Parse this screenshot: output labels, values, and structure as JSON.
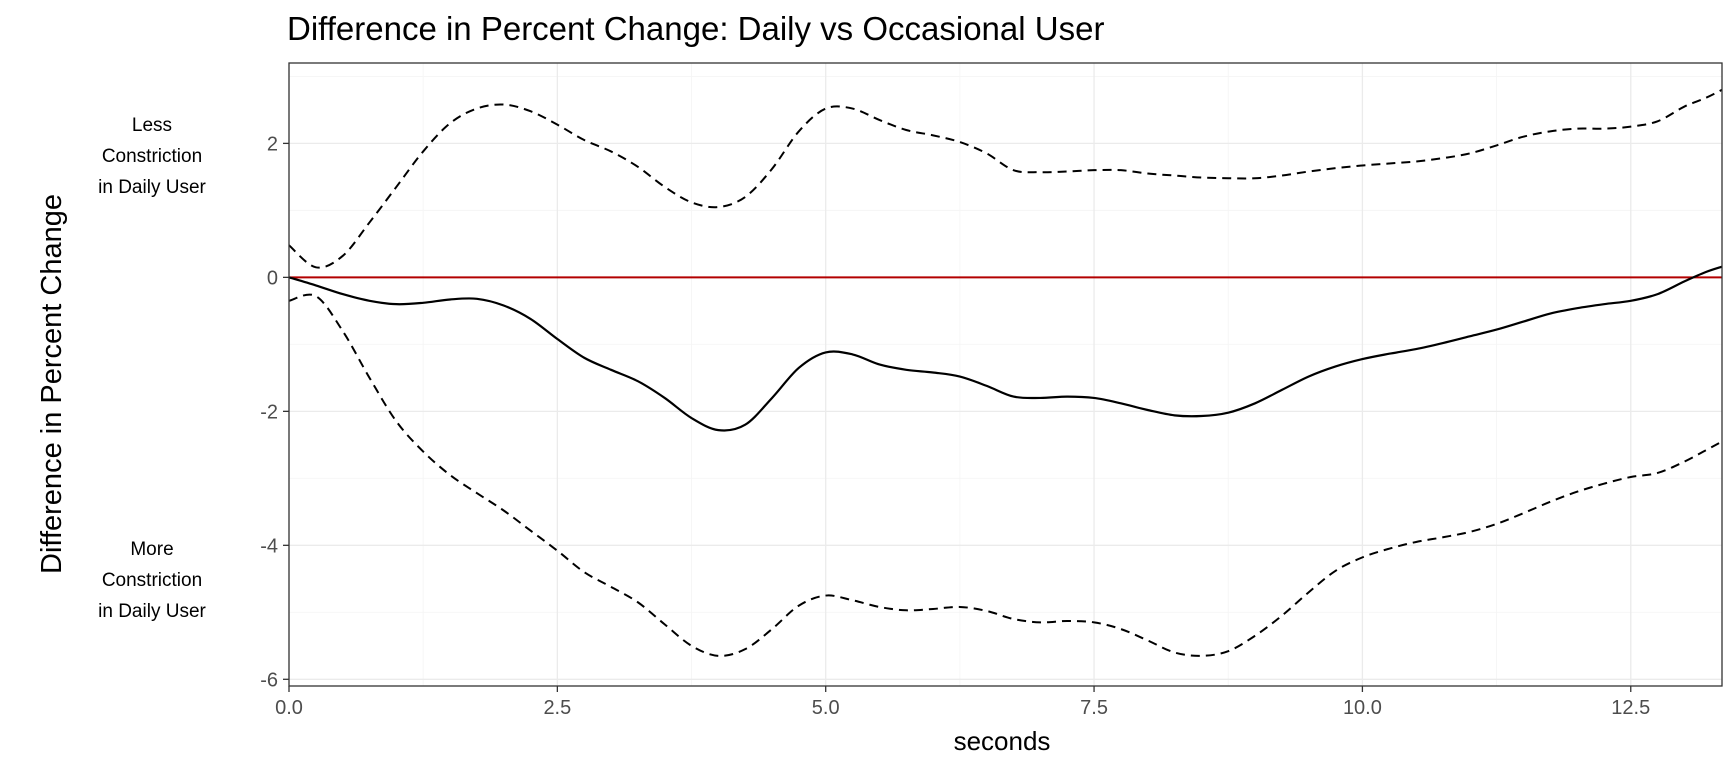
{
  "chart_data": {
    "type": "line",
    "title": "Difference in Percent Change: Daily vs Occasional User",
    "xlabel": "seconds",
    "ylabel": "Difference in Percent Change",
    "xlim": [
      0,
      13.35
    ],
    "ylim": [
      -6.1,
      3.2
    ],
    "x_ticks": [
      0.0,
      2.5,
      5.0,
      7.5,
      10.0,
      12.5
    ],
    "x_tick_labels": [
      "0.0",
      "2.5",
      "5.0",
      "7.5",
      "10.0",
      "12.5"
    ],
    "y_ticks": [
      -6,
      -4,
      -2,
      0,
      2
    ],
    "y_tick_labels": [
      "-6",
      "-4",
      "-2",
      "0",
      "2"
    ],
    "grid": true,
    "reference_line": {
      "y": 0,
      "color": "#b30000"
    },
    "annotations": {
      "upper": [
        "Less",
        "Constriction",
        "in Daily User"
      ],
      "lower": [
        "More",
        "Constriction",
        "in Daily User"
      ]
    },
    "series": [
      {
        "style": "solid",
        "x": [
          0.0,
          0.25,
          0.5,
          0.75,
          1.0,
          1.25,
          1.5,
          1.75,
          2.0,
          2.25,
          2.5,
          2.75,
          3.0,
          3.25,
          3.5,
          3.75,
          4.0,
          4.25,
          4.5,
          4.75,
          5.0,
          5.25,
          5.5,
          5.75,
          6.0,
          6.25,
          6.5,
          6.75,
          7.0,
          7.25,
          7.5,
          7.75,
          8.0,
          8.25,
          8.5,
          8.75,
          9.0,
          9.25,
          9.5,
          9.75,
          10.0,
          10.25,
          10.5,
          10.75,
          11.0,
          11.25,
          11.5,
          11.75,
          12.0,
          12.25,
          12.5,
          12.75,
          13.0,
          13.2,
          13.35
        ],
        "y": [
          0.0,
          -0.12,
          -0.25,
          -0.35,
          -0.4,
          -0.38,
          -0.33,
          -0.32,
          -0.42,
          -0.62,
          -0.92,
          -1.2,
          -1.38,
          -1.55,
          -1.8,
          -2.1,
          -2.28,
          -2.2,
          -1.8,
          -1.35,
          -1.12,
          -1.15,
          -1.3,
          -1.38,
          -1.42,
          -1.48,
          -1.62,
          -1.78,
          -1.8,
          -1.78,
          -1.8,
          -1.88,
          -1.98,
          -2.06,
          -2.07,
          -2.02,
          -1.88,
          -1.68,
          -1.48,
          -1.33,
          -1.22,
          -1.14,
          -1.07,
          -0.98,
          -0.88,
          -0.78,
          -0.66,
          -0.54,
          -0.46,
          -0.4,
          -0.35,
          -0.25,
          -0.06,
          0.08,
          0.16
        ]
      },
      {
        "style": "dashed",
        "x": [
          0.0,
          0.25,
          0.5,
          0.75,
          1.0,
          1.25,
          1.5,
          1.75,
          2.0,
          2.25,
          2.5,
          2.75,
          3.0,
          3.25,
          3.5,
          3.75,
          4.0,
          4.25,
          4.5,
          4.75,
          5.0,
          5.25,
          5.5,
          5.75,
          6.0,
          6.25,
          6.5,
          6.75,
          7.0,
          7.25,
          7.5,
          7.75,
          8.0,
          8.25,
          8.5,
          8.75,
          9.0,
          9.25,
          9.5,
          9.75,
          10.0,
          10.25,
          10.5,
          10.75,
          11.0,
          11.25,
          11.5,
          11.75,
          12.0,
          12.25,
          12.5,
          12.75,
          13.0,
          13.2,
          13.35
        ],
        "y": [
          0.48,
          0.15,
          0.32,
          0.82,
          1.35,
          1.88,
          2.3,
          2.52,
          2.58,
          2.48,
          2.28,
          2.05,
          1.88,
          1.65,
          1.35,
          1.12,
          1.05,
          1.2,
          1.62,
          2.18,
          2.52,
          2.52,
          2.35,
          2.2,
          2.12,
          2.02,
          1.85,
          1.6,
          1.57,
          1.58,
          1.6,
          1.6,
          1.55,
          1.52,
          1.49,
          1.48,
          1.48,
          1.52,
          1.58,
          1.63,
          1.67,
          1.7,
          1.73,
          1.78,
          1.85,
          1.97,
          2.1,
          2.18,
          2.22,
          2.22,
          2.25,
          2.33,
          2.55,
          2.68,
          2.8
        ]
      },
      {
        "style": "dashed",
        "x": [
          0.0,
          0.25,
          0.5,
          0.75,
          1.0,
          1.25,
          1.5,
          1.75,
          2.0,
          2.25,
          2.5,
          2.75,
          3.0,
          3.25,
          3.5,
          3.75,
          4.0,
          4.25,
          4.5,
          4.75,
          5.0,
          5.25,
          5.5,
          5.75,
          6.0,
          6.25,
          6.5,
          6.75,
          7.0,
          7.25,
          7.5,
          7.75,
          8.0,
          8.25,
          8.5,
          8.75,
          9.0,
          9.25,
          9.5,
          9.75,
          10.0,
          10.25,
          10.5,
          10.75,
          11.0,
          11.25,
          11.5,
          11.75,
          12.0,
          12.25,
          12.5,
          12.75,
          13.0,
          13.2,
          13.35
        ],
        "y": [
          -0.35,
          -0.28,
          -0.8,
          -1.5,
          -2.15,
          -2.6,
          -2.95,
          -3.22,
          -3.48,
          -3.78,
          -4.08,
          -4.4,
          -4.62,
          -4.85,
          -5.18,
          -5.5,
          -5.65,
          -5.55,
          -5.25,
          -4.9,
          -4.75,
          -4.82,
          -4.92,
          -4.97,
          -4.95,
          -4.92,
          -4.98,
          -5.1,
          -5.15,
          -5.13,
          -5.15,
          -5.25,
          -5.42,
          -5.6,
          -5.65,
          -5.58,
          -5.35,
          -5.05,
          -4.7,
          -4.38,
          -4.18,
          -4.05,
          -3.95,
          -3.88,
          -3.8,
          -3.68,
          -3.52,
          -3.35,
          -3.2,
          -3.08,
          -2.98,
          -2.92,
          -2.75,
          -2.58,
          -2.45
        ]
      }
    ]
  }
}
